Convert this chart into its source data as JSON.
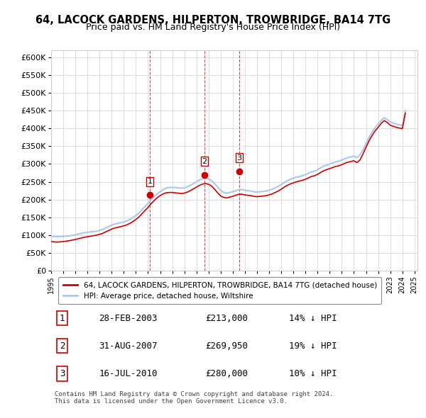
{
  "title": "64, LACOCK GARDENS, HILPERTON, TROWBRIDGE, BA14 7TG",
  "subtitle": "Price paid vs. HM Land Registry's House Price Index (HPI)",
  "background_color": "#ffffff",
  "grid_color": "#dddddd",
  "hpi_color": "#aec6e8",
  "price_color": "#cc0000",
  "ylim": [
    0,
    620000
  ],
  "yticks": [
    0,
    50000,
    100000,
    150000,
    200000,
    250000,
    300000,
    350000,
    400000,
    450000,
    500000,
    550000,
    600000
  ],
  "ytick_labels": [
    "£0",
    "£50K",
    "£100K",
    "£150K",
    "£200K",
    "£250K",
    "£300K",
    "£350K",
    "£400K",
    "£450K",
    "£500K",
    "£550K",
    "£600K"
  ],
  "sales": [
    {
      "date": 2003.15,
      "price": 213000,
      "label": "1"
    },
    {
      "date": 2007.67,
      "price": 269950,
      "label": "2"
    },
    {
      "date": 2010.54,
      "price": 280000,
      "label": "3"
    }
  ],
  "sale_dates_info": [
    {
      "num": "1",
      "date_str": "28-FEB-2003",
      "price_str": "£213,000",
      "pct_str": "14% ↓ HPI"
    },
    {
      "num": "2",
      "date_str": "31-AUG-2007",
      "price_str": "£269,950",
      "pct_str": "19% ↓ HPI"
    },
    {
      "num": "3",
      "date_str": "16-JUL-2010",
      "price_str": "£280,000",
      "pct_str": "10% ↓ HPI"
    }
  ],
  "legend_label_red": "64, LACOCK GARDENS, HILPERTON, TROWBRIDGE, BA14 7TG (detached house)",
  "legend_label_blue": "HPI: Average price, detached house, Wiltshire",
  "footnote": "Contains HM Land Registry data © Crown copyright and database right 2024.\nThis data is licensed under the Open Government Licence v3.0.",
  "hpi_data": {
    "years": [
      1995.0,
      1995.25,
      1995.5,
      1995.75,
      1996.0,
      1996.25,
      1996.5,
      1996.75,
      1997.0,
      1997.25,
      1997.5,
      1997.75,
      1998.0,
      1998.25,
      1998.5,
      1998.75,
      1999.0,
      1999.25,
      1999.5,
      1999.75,
      2000.0,
      2000.25,
      2000.5,
      2000.75,
      2001.0,
      2001.25,
      2001.5,
      2001.75,
      2002.0,
      2002.25,
      2002.5,
      2002.75,
      2003.0,
      2003.25,
      2003.5,
      2003.75,
      2004.0,
      2004.25,
      2004.5,
      2004.75,
      2005.0,
      2005.25,
      2005.5,
      2005.75,
      2006.0,
      2006.25,
      2006.5,
      2006.75,
      2007.0,
      2007.25,
      2007.5,
      2007.75,
      2008.0,
      2008.25,
      2008.5,
      2008.75,
      2009.0,
      2009.25,
      2009.5,
      2009.75,
      2010.0,
      2010.25,
      2010.5,
      2010.75,
      2011.0,
      2011.25,
      2011.5,
      2011.75,
      2012.0,
      2012.25,
      2012.5,
      2012.75,
      2013.0,
      2013.25,
      2013.5,
      2013.75,
      2014.0,
      2014.25,
      2014.5,
      2014.75,
      2015.0,
      2015.25,
      2015.5,
      2015.75,
      2016.0,
      2016.25,
      2016.5,
      2016.75,
      2017.0,
      2017.25,
      2017.5,
      2017.75,
      2018.0,
      2018.25,
      2018.5,
      2018.75,
      2019.0,
      2019.25,
      2019.5,
      2019.75,
      2020.0,
      2020.25,
      2020.5,
      2020.75,
      2021.0,
      2021.25,
      2021.5,
      2021.75,
      2022.0,
      2022.25,
      2022.5,
      2022.75,
      2023.0,
      2023.25,
      2023.5,
      2023.75,
      2024.0,
      2024.25
    ],
    "values": [
      97000,
      96000,
      95500,
      96000,
      96500,
      97000,
      98000,
      99000,
      101000,
      103000,
      105000,
      107000,
      108000,
      109000,
      110000,
      111000,
      113000,
      116000,
      120000,
      124000,
      128000,
      131000,
      133000,
      135000,
      137000,
      140000,
      144000,
      149000,
      155000,
      162000,
      171000,
      180000,
      189000,
      199000,
      208000,
      216000,
      222000,
      228000,
      232000,
      234000,
      234000,
      234000,
      233000,
      232000,
      233000,
      236000,
      240000,
      245000,
      250000,
      255000,
      258000,
      260000,
      258000,
      253000,
      245000,
      235000,
      225000,
      220000,
      218000,
      220000,
      222000,
      225000,
      228000,
      228000,
      226000,
      225000,
      224000,
      222000,
      221000,
      222000,
      223000,
      224000,
      226000,
      229000,
      233000,
      237000,
      242000,
      248000,
      253000,
      257000,
      260000,
      263000,
      265000,
      267000,
      270000,
      274000,
      278000,
      280000,
      284000,
      289000,
      294000,
      297000,
      300000,
      303000,
      306000,
      308000,
      311000,
      315000,
      318000,
      320000,
      322000,
      318000,
      325000,
      340000,
      358000,
      375000,
      390000,
      402000,
      412000,
      422000,
      430000,
      425000,
      418000,
      415000,
      412000,
      410000,
      408000,
      450000
    ]
  },
  "price_index_data": {
    "years": [
      1995.0,
      1995.25,
      1995.5,
      1995.75,
      1996.0,
      1996.25,
      1996.5,
      1996.75,
      1997.0,
      1997.25,
      1997.5,
      1997.75,
      1998.0,
      1998.25,
      1998.5,
      1998.75,
      1999.0,
      1999.25,
      1999.5,
      1999.75,
      2000.0,
      2000.25,
      2000.5,
      2000.75,
      2001.0,
      2001.25,
      2001.5,
      2001.75,
      2002.0,
      2002.25,
      2002.5,
      2002.75,
      2003.0,
      2003.25,
      2003.5,
      2003.75,
      2004.0,
      2004.25,
      2004.5,
      2004.75,
      2005.0,
      2005.25,
      2005.5,
      2005.75,
      2006.0,
      2006.25,
      2006.5,
      2006.75,
      2007.0,
      2007.25,
      2007.5,
      2007.75,
      2008.0,
      2008.25,
      2008.5,
      2008.75,
      2009.0,
      2009.25,
      2009.5,
      2009.75,
      2010.0,
      2010.25,
      2010.5,
      2010.75,
      2011.0,
      2011.25,
      2011.5,
      2011.75,
      2012.0,
      2012.25,
      2012.5,
      2012.75,
      2013.0,
      2013.25,
      2013.5,
      2013.75,
      2014.0,
      2014.25,
      2014.5,
      2014.75,
      2015.0,
      2015.25,
      2015.5,
      2015.75,
      2016.0,
      2016.25,
      2016.5,
      2016.75,
      2017.0,
      2017.25,
      2017.5,
      2017.75,
      2018.0,
      2018.25,
      2018.5,
      2018.75,
      2019.0,
      2019.25,
      2019.5,
      2019.75,
      2020.0,
      2020.25,
      2020.5,
      2020.75,
      2021.0,
      2021.25,
      2021.5,
      2021.75,
      2022.0,
      2022.25,
      2022.5,
      2022.75,
      2023.0,
      2023.25,
      2023.5,
      2023.75,
      2024.0,
      2024.25
    ],
    "values": [
      82000,
      81000,
      80500,
      81000,
      82000,
      83000,
      84500,
      86000,
      88000,
      90000,
      92000,
      94000,
      95500,
      97000,
      98500,
      100000,
      102000,
      105000,
      109000,
      113000,
      117000,
      120000,
      122000,
      124000,
      126000,
      129000,
      133000,
      138000,
      144000,
      151000,
      160000,
      169000,
      178000,
      188000,
      197000,
      205000,
      211000,
      216000,
      219000,
      220000,
      220000,
      219000,
      218000,
      217000,
      218000,
      221000,
      225000,
      230000,
      235000,
      240000,
      243500,
      245000,
      243000,
      238000,
      229000,
      219000,
      210000,
      206000,
      204500,
      207000,
      209000,
      212000,
      215000,
      215000,
      213000,
      212000,
      211000,
      209000,
      208000,
      209000,
      210000,
      211000,
      213000,
      216000,
      220000,
      224000,
      229000,
      235000,
      240000,
      244000,
      247000,
      250000,
      252000,
      254000,
      257000,
      261000,
      265000,
      267000,
      271000,
      276000,
      281000,
      284000,
      287000,
      290000,
      293000,
      295000,
      298000,
      302000,
      305000,
      307000,
      309000,
      304000,
      311000,
      328000,
      347000,
      365000,
      380000,
      393000,
      403000,
      414000,
      422000,
      417000,
      409000,
      406000,
      403000,
      401000,
      399000,
      443000
    ]
  }
}
